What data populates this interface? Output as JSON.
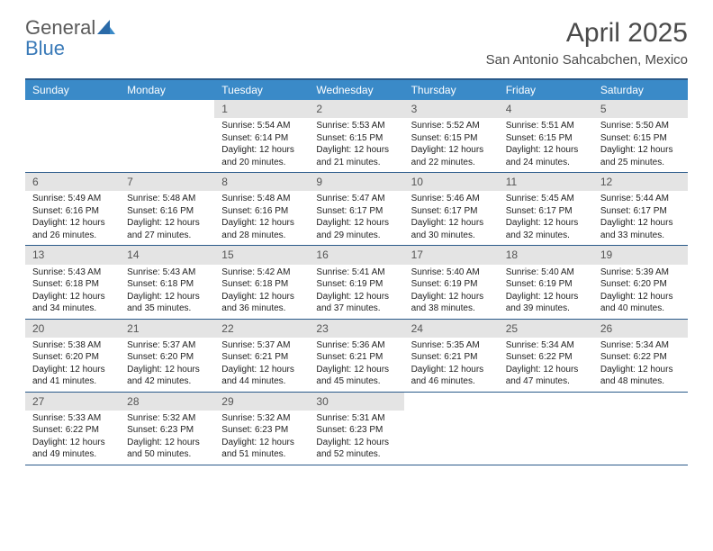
{
  "logo": {
    "text1": "General",
    "text2": "Blue"
  },
  "title": "April 2025",
  "location": "San Antonio Sahcabchen, Mexico",
  "colors": {
    "header_bg": "#3a8ac8",
    "header_text": "#ffffff",
    "border": "#2a5a8a",
    "daynum_bg": "#e4e4e4",
    "daynum_text": "#555555",
    "body_text": "#222222",
    "logo_gray": "#5a5a5a",
    "logo_blue": "#3a7ab8"
  },
  "dayNames": [
    "Sunday",
    "Monday",
    "Tuesday",
    "Wednesday",
    "Thursday",
    "Friday",
    "Saturday"
  ],
  "weeks": [
    [
      {
        "empty": true
      },
      {
        "empty": true
      },
      {
        "day": "1",
        "sunrise": "Sunrise: 5:54 AM",
        "sunset": "Sunset: 6:14 PM",
        "daylight": "Daylight: 12 hours and 20 minutes."
      },
      {
        "day": "2",
        "sunrise": "Sunrise: 5:53 AM",
        "sunset": "Sunset: 6:15 PM",
        "daylight": "Daylight: 12 hours and 21 minutes."
      },
      {
        "day": "3",
        "sunrise": "Sunrise: 5:52 AM",
        "sunset": "Sunset: 6:15 PM",
        "daylight": "Daylight: 12 hours and 22 minutes."
      },
      {
        "day": "4",
        "sunrise": "Sunrise: 5:51 AM",
        "sunset": "Sunset: 6:15 PM",
        "daylight": "Daylight: 12 hours and 24 minutes."
      },
      {
        "day": "5",
        "sunrise": "Sunrise: 5:50 AM",
        "sunset": "Sunset: 6:15 PM",
        "daylight": "Daylight: 12 hours and 25 minutes."
      }
    ],
    [
      {
        "day": "6",
        "sunrise": "Sunrise: 5:49 AM",
        "sunset": "Sunset: 6:16 PM",
        "daylight": "Daylight: 12 hours and 26 minutes."
      },
      {
        "day": "7",
        "sunrise": "Sunrise: 5:48 AM",
        "sunset": "Sunset: 6:16 PM",
        "daylight": "Daylight: 12 hours and 27 minutes."
      },
      {
        "day": "8",
        "sunrise": "Sunrise: 5:48 AM",
        "sunset": "Sunset: 6:16 PM",
        "daylight": "Daylight: 12 hours and 28 minutes."
      },
      {
        "day": "9",
        "sunrise": "Sunrise: 5:47 AM",
        "sunset": "Sunset: 6:17 PM",
        "daylight": "Daylight: 12 hours and 29 minutes."
      },
      {
        "day": "10",
        "sunrise": "Sunrise: 5:46 AM",
        "sunset": "Sunset: 6:17 PM",
        "daylight": "Daylight: 12 hours and 30 minutes."
      },
      {
        "day": "11",
        "sunrise": "Sunrise: 5:45 AM",
        "sunset": "Sunset: 6:17 PM",
        "daylight": "Daylight: 12 hours and 32 minutes."
      },
      {
        "day": "12",
        "sunrise": "Sunrise: 5:44 AM",
        "sunset": "Sunset: 6:17 PM",
        "daylight": "Daylight: 12 hours and 33 minutes."
      }
    ],
    [
      {
        "day": "13",
        "sunrise": "Sunrise: 5:43 AM",
        "sunset": "Sunset: 6:18 PM",
        "daylight": "Daylight: 12 hours and 34 minutes."
      },
      {
        "day": "14",
        "sunrise": "Sunrise: 5:43 AM",
        "sunset": "Sunset: 6:18 PM",
        "daylight": "Daylight: 12 hours and 35 minutes."
      },
      {
        "day": "15",
        "sunrise": "Sunrise: 5:42 AM",
        "sunset": "Sunset: 6:18 PM",
        "daylight": "Daylight: 12 hours and 36 minutes."
      },
      {
        "day": "16",
        "sunrise": "Sunrise: 5:41 AM",
        "sunset": "Sunset: 6:19 PM",
        "daylight": "Daylight: 12 hours and 37 minutes."
      },
      {
        "day": "17",
        "sunrise": "Sunrise: 5:40 AM",
        "sunset": "Sunset: 6:19 PM",
        "daylight": "Daylight: 12 hours and 38 minutes."
      },
      {
        "day": "18",
        "sunrise": "Sunrise: 5:40 AM",
        "sunset": "Sunset: 6:19 PM",
        "daylight": "Daylight: 12 hours and 39 minutes."
      },
      {
        "day": "19",
        "sunrise": "Sunrise: 5:39 AM",
        "sunset": "Sunset: 6:20 PM",
        "daylight": "Daylight: 12 hours and 40 minutes."
      }
    ],
    [
      {
        "day": "20",
        "sunrise": "Sunrise: 5:38 AM",
        "sunset": "Sunset: 6:20 PM",
        "daylight": "Daylight: 12 hours and 41 minutes."
      },
      {
        "day": "21",
        "sunrise": "Sunrise: 5:37 AM",
        "sunset": "Sunset: 6:20 PM",
        "daylight": "Daylight: 12 hours and 42 minutes."
      },
      {
        "day": "22",
        "sunrise": "Sunrise: 5:37 AM",
        "sunset": "Sunset: 6:21 PM",
        "daylight": "Daylight: 12 hours and 44 minutes."
      },
      {
        "day": "23",
        "sunrise": "Sunrise: 5:36 AM",
        "sunset": "Sunset: 6:21 PM",
        "daylight": "Daylight: 12 hours and 45 minutes."
      },
      {
        "day": "24",
        "sunrise": "Sunrise: 5:35 AM",
        "sunset": "Sunset: 6:21 PM",
        "daylight": "Daylight: 12 hours and 46 minutes."
      },
      {
        "day": "25",
        "sunrise": "Sunrise: 5:34 AM",
        "sunset": "Sunset: 6:22 PM",
        "daylight": "Daylight: 12 hours and 47 minutes."
      },
      {
        "day": "26",
        "sunrise": "Sunrise: 5:34 AM",
        "sunset": "Sunset: 6:22 PM",
        "daylight": "Daylight: 12 hours and 48 minutes."
      }
    ],
    [
      {
        "day": "27",
        "sunrise": "Sunrise: 5:33 AM",
        "sunset": "Sunset: 6:22 PM",
        "daylight": "Daylight: 12 hours and 49 minutes."
      },
      {
        "day": "28",
        "sunrise": "Sunrise: 5:32 AM",
        "sunset": "Sunset: 6:23 PM",
        "daylight": "Daylight: 12 hours and 50 minutes."
      },
      {
        "day": "29",
        "sunrise": "Sunrise: 5:32 AM",
        "sunset": "Sunset: 6:23 PM",
        "daylight": "Daylight: 12 hours and 51 minutes."
      },
      {
        "day": "30",
        "sunrise": "Sunrise: 5:31 AM",
        "sunset": "Sunset: 6:23 PM",
        "daylight": "Daylight: 12 hours and 52 minutes."
      },
      {
        "empty": true
      },
      {
        "empty": true
      },
      {
        "empty": true
      }
    ]
  ]
}
